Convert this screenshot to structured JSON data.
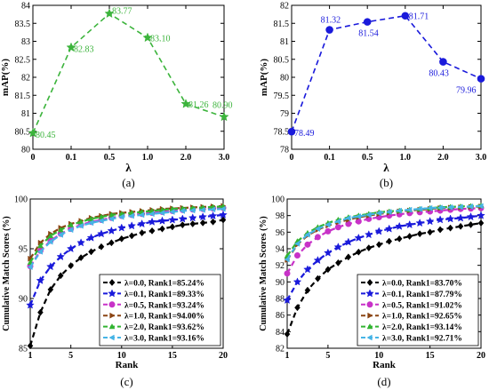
{
  "chart_data": [
    {
      "panel_label": "(a)",
      "type": "line",
      "xlabel": "λ",
      "ylabel": "mAP(%)",
      "x": [
        "0",
        "0.1",
        "0.5",
        "1.0",
        "2.0",
        "3.0"
      ],
      "ylim": [
        80,
        84
      ],
      "yticks": [
        "80",
        "80.5",
        "81",
        "81.5",
        "82",
        "82.5",
        "83",
        "83.5",
        "84"
      ],
      "grid": false,
      "series": [
        {
          "color": "#3cb43c",
          "marker": "star",
          "linestyle": "dashed",
          "values": [
            80.45,
            82.83,
            83.77,
            83.1,
            81.26,
            80.9
          ],
          "labels": [
            "80.45",
            "82.83",
            "83.77",
            "83.10",
            "81.26",
            "80.90"
          ]
        }
      ]
    },
    {
      "panel_label": "(b)",
      "type": "line",
      "xlabel": "λ",
      "ylabel": "mAP(%)",
      "x": [
        "0",
        "0.1",
        "0.5",
        "1.0",
        "2.0",
        "3.0"
      ],
      "ylim": [
        78,
        82
      ],
      "yticks": [
        "78",
        "78.5",
        "79",
        "79.5",
        "80",
        "80.5",
        "81",
        "81.5",
        "82"
      ],
      "grid": false,
      "series": [
        {
          "color": "#1a1adb",
          "marker": "circle",
          "linestyle": "dashed",
          "values": [
            78.49,
            81.32,
            81.54,
            81.71,
            80.43,
            79.96
          ],
          "labels": [
            "78.49",
            "81.32",
            "81.54",
            "81.71",
            "80.43",
            "79.96"
          ]
        }
      ]
    },
    {
      "panel_label": "(c)",
      "type": "line",
      "xlabel": "Rank",
      "ylabel": "Cumulative Match Scores (%)",
      "x": [
        1,
        2,
        3,
        4,
        5,
        6,
        7,
        8,
        9,
        10,
        11,
        12,
        13,
        14,
        15,
        16,
        17,
        18,
        19,
        20
      ],
      "xticks": [
        "1",
        "5",
        "10",
        "15",
        "20"
      ],
      "ylim": [
        85,
        100
      ],
      "yticks": [
        "85",
        "90",
        "95",
        "100"
      ],
      "legend": "bottom-right",
      "grid": false,
      "series": [
        {
          "name": "λ=0.0, Rank1=85.24%",
          "color": "#000000",
          "marker": "diamond",
          "values": [
            85.24,
            88.6,
            90.9,
            92.3,
            93.3,
            94.1,
            94.7,
            95.2,
            95.6,
            96.0,
            96.3,
            96.6,
            96.8,
            97.0,
            97.2,
            97.4,
            97.5,
            97.6,
            97.7,
            97.9
          ]
        },
        {
          "name": "λ=0.1, Rank1=89.33%",
          "color": "#1a1adb",
          "marker": "star",
          "values": [
            89.33,
            91.8,
            93.2,
            94.2,
            95.0,
            95.6,
            96.1,
            96.5,
            96.8,
            97.1,
            97.3,
            97.5,
            97.7,
            97.8,
            97.9,
            98.0,
            98.1,
            98.2,
            98.3,
            98.4
          ]
        },
        {
          "name": "λ=0.5, Rank1=93.24%",
          "color": "#c832c8",
          "marker": "circle",
          "values": [
            93.24,
            94.8,
            95.8,
            96.5,
            97.0,
            97.4,
            97.7,
            97.9,
            98.1,
            98.3,
            98.4,
            98.5,
            98.6,
            98.7,
            98.8,
            98.9,
            98.95,
            99.0,
            99.05,
            99.1
          ]
        },
        {
          "name": "λ=1.0, Rank1=94.00%",
          "color": "#8b4513",
          "marker": "triangle-right",
          "values": [
            94.0,
            95.6,
            96.5,
            97.1,
            97.5,
            97.8,
            98.1,
            98.3,
            98.5,
            98.6,
            98.7,
            98.8,
            98.9,
            99.0,
            99.05,
            99.1,
            99.15,
            99.2,
            99.25,
            99.3
          ]
        },
        {
          "name": "λ=2.0, Rank1=93.62%",
          "color": "#32b432",
          "marker": "triangle-up",
          "values": [
            93.62,
            95.3,
            96.3,
            96.9,
            97.4,
            97.7,
            98.0,
            98.2,
            98.4,
            98.5,
            98.6,
            98.7,
            98.8,
            98.9,
            99.0,
            99.05,
            99.1,
            99.15,
            99.2,
            99.25
          ]
        },
        {
          "name": "λ=3.0, Rank1=93.16%",
          "color": "#46b4e6",
          "marker": "triangle-left",
          "values": [
            93.16,
            94.7,
            95.7,
            96.4,
            96.9,
            97.3,
            97.6,
            97.8,
            98.0,
            98.2,
            98.3,
            98.4,
            98.5,
            98.6,
            98.7,
            98.8,
            98.85,
            98.9,
            98.95,
            99.0
          ]
        }
      ]
    },
    {
      "panel_label": "(d)",
      "type": "line",
      "xlabel": "Rank",
      "ylabel": "Cumulative Match Scores (%)",
      "x": [
        1,
        2,
        3,
        4,
        5,
        6,
        7,
        8,
        9,
        10,
        11,
        12,
        13,
        14,
        15,
        16,
        17,
        18,
        19,
        20
      ],
      "xticks": [
        "1",
        "5",
        "10",
        "15",
        "20"
      ],
      "ylim": [
        82,
        100
      ],
      "yticks": [
        "82",
        "84",
        "86",
        "88",
        "90",
        "92",
        "94",
        "96",
        "98",
        "100"
      ],
      "legend": "bottom-right",
      "grid": false,
      "series": [
        {
          "name": "λ=0.0, Rank1=83.70%",
          "color": "#000000",
          "marker": "diamond",
          "values": [
            83.7,
            86.9,
            89.0,
            90.4,
            91.5,
            92.3,
            93.0,
            93.6,
            94.1,
            94.5,
            94.9,
            95.2,
            95.5,
            95.8,
            96.0,
            96.3,
            96.5,
            96.7,
            96.9,
            97.1
          ]
        },
        {
          "name": "λ=0.1, Rank1=87.79%",
          "color": "#1a1adb",
          "marker": "star",
          "values": [
            87.79,
            90.0,
            91.5,
            92.6,
            93.5,
            94.2,
            94.8,
            95.3,
            95.7,
            96.1,
            96.4,
            96.7,
            96.9,
            97.1,
            97.3,
            97.5,
            97.6,
            97.7,
            97.85,
            98.0
          ]
        },
        {
          "name": "λ=0.5, Rank1=91.02%",
          "color": "#c832c8",
          "marker": "circle",
          "values": [
            91.02,
            93.2,
            94.5,
            95.4,
            96.1,
            96.6,
            97.0,
            97.3,
            97.6,
            97.8,
            98.0,
            98.15,
            98.3,
            98.4,
            98.5,
            98.6,
            98.7,
            98.8,
            98.85,
            98.9
          ]
        },
        {
          "name": "λ=1.0, Rank1=92.65%",
          "color": "#8b4513",
          "marker": "triangle-right",
          "values": [
            92.65,
            94.5,
            95.6,
            96.3,
            96.8,
            97.2,
            97.5,
            97.8,
            98.0,
            98.2,
            98.35,
            98.5,
            98.6,
            98.7,
            98.8,
            98.9,
            98.95,
            99.0,
            99.05,
            99.1
          ]
        },
        {
          "name": "λ=2.0, Rank1=93.14%",
          "color": "#32b432",
          "marker": "triangle-up",
          "values": [
            93.14,
            94.9,
            95.9,
            96.6,
            97.1,
            97.5,
            97.8,
            98.0,
            98.2,
            98.4,
            98.5,
            98.6,
            98.7,
            98.8,
            98.9,
            99.0,
            99.05,
            99.1,
            99.15,
            99.2
          ]
        },
        {
          "name": "λ=3.0, Rank1=92.71%",
          "color": "#46b4e6",
          "marker": "triangle-left",
          "values": [
            92.71,
            94.6,
            95.7,
            96.4,
            96.9,
            97.3,
            97.7,
            97.9,
            98.1,
            98.3,
            98.45,
            98.6,
            98.7,
            98.8,
            98.9,
            98.95,
            99.0,
            99.05,
            99.1,
            99.15
          ]
        }
      ]
    }
  ]
}
